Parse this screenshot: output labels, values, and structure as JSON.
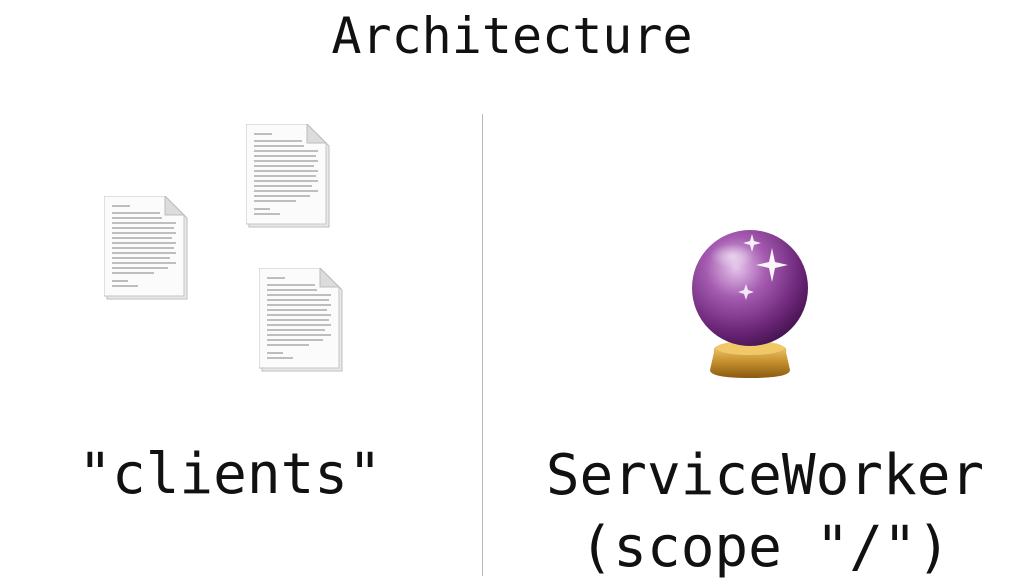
{
  "title": "Architecture",
  "left": {
    "label": "\"clients\"",
    "icons": [
      "document-icon",
      "document-icon",
      "document-icon"
    ]
  },
  "right": {
    "label_line1": "ServiceWorker",
    "label_line2": "(scope \"/\")",
    "icon": "crystal-ball-icon"
  },
  "colors": {
    "text": "#111111",
    "divider": "#b8b8b8",
    "crystal_ball": "#7a2f86",
    "base": "#c7922e"
  }
}
